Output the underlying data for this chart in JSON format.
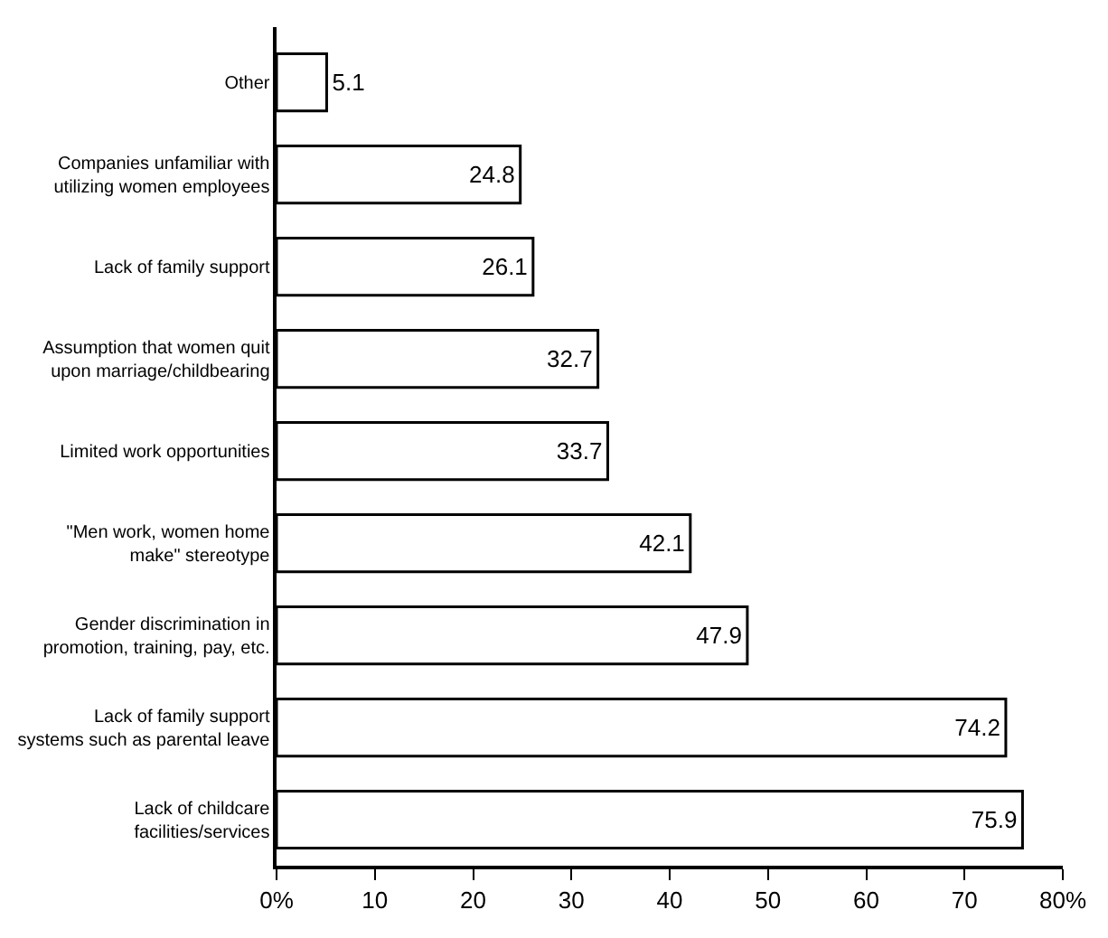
{
  "chart_data": {
    "type": "bar",
    "orientation": "horizontal",
    "categories": [
      "Other",
      "Companies unfamiliar with\nutilizing women employees",
      "Lack of family support",
      "Assumption that women quit\nupon marriage/childbearing",
      "Limited work opportunities",
      "\"Men work, women home\nmake\" stereotype",
      "Gender discrimination in\npromotion, training, pay, etc.",
      "Lack of family support\nsystems such as parental leave",
      "Lack of childcare\nfacilities/services"
    ],
    "values": [
      5.1,
      24.8,
      26.1,
      32.7,
      33.7,
      42.1,
      47.9,
      74.2,
      75.9
    ],
    "color": "#ffffff",
    "data_labels": true,
    "xlim": [
      0,
      80
    ],
    "xticks": [
      {
        "value": 0,
        "label": "0%"
      },
      10,
      20,
      30,
      40,
      50,
      60,
      70,
      {
        "value": 80,
        "label": "80%"
      }
    ]
  }
}
